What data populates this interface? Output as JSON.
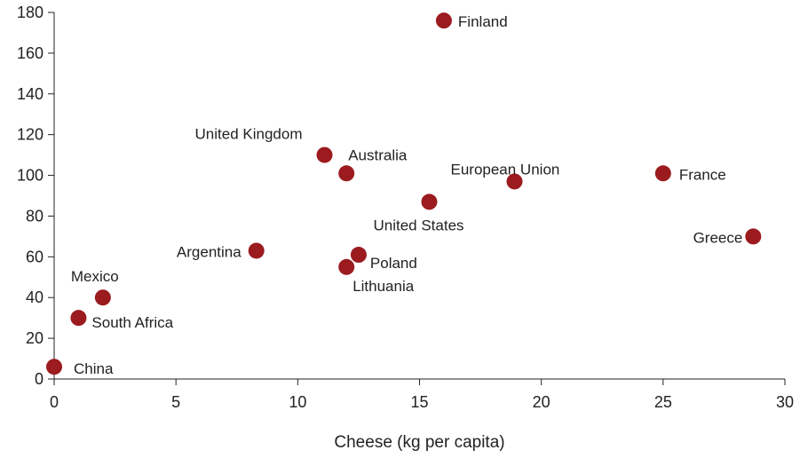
{
  "chart_data": {
    "type": "scatter",
    "xlabel": "Cheese (kg per capita)",
    "ylabel": "",
    "xlim": [
      0,
      30
    ],
    "ylim": [
      0,
      180
    ],
    "xticks": [
      0,
      5,
      10,
      15,
      20,
      25,
      30
    ],
    "yticks": [
      0,
      20,
      40,
      60,
      80,
      100,
      120,
      140,
      160,
      180
    ],
    "grid": false,
    "marker_color": "#9b1b1f",
    "points": [
      {
        "label": "Finland",
        "x": 16.0,
        "y": 176
      },
      {
        "label": "United Kingdom",
        "x": 11.1,
        "y": 110
      },
      {
        "label": "Australia",
        "x": 12.0,
        "y": 101
      },
      {
        "label": "European Union",
        "x": 18.9,
        "y": 97
      },
      {
        "label": "France",
        "x": 25.0,
        "y": 101
      },
      {
        "label": "United States",
        "x": 15.4,
        "y": 87
      },
      {
        "label": "Greece",
        "x": 28.7,
        "y": 70
      },
      {
        "label": "Argentina",
        "x": 8.3,
        "y": 63
      },
      {
        "label": "Poland",
        "x": 12.5,
        "y": 61
      },
      {
        "label": "Lithuania",
        "x": 12.0,
        "y": 55
      },
      {
        "label": "Mexico",
        "x": 2.0,
        "y": 40
      },
      {
        "label": "South Africa",
        "x": 1.0,
        "y": 30
      },
      {
        "label": "China",
        "x": 0.0,
        "y": 6
      }
    ]
  }
}
